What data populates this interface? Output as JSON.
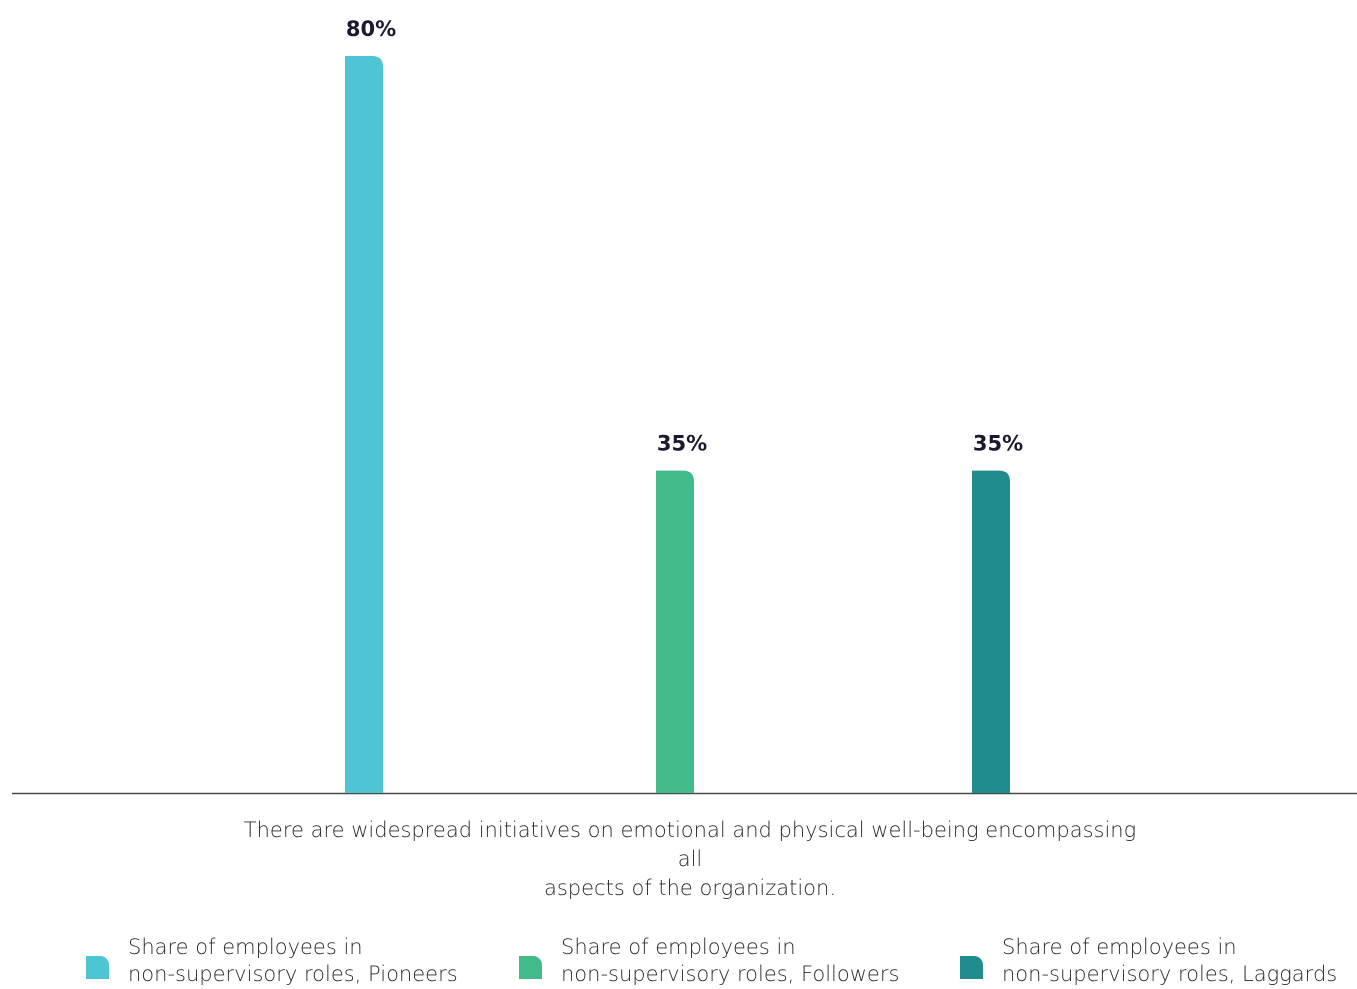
{
  "chart_data": {
    "type": "bar",
    "categories": [
      "There are widespread initiatives on emotional and physical well-being encompassing all aspects of the organization."
    ],
    "category_label_lines": [
      "There are widespread initiatives on emotional and physical well-being encompassing all",
      "aspects of the organization."
    ],
    "series": [
      {
        "name": "Share of employees in non-supervisory roles, Pioneers",
        "legend_lines": [
          "Share of employees in",
          "non-supervisory roles, Pioneers"
        ],
        "values": [
          80
        ],
        "value_label": "80%",
        "color": "#4ec5d3"
      },
      {
        "name": "Share of employees in non-supervisory roles, Followers",
        "legend_lines": [
          "Share of employees in",
          "non-supervisory roles, Followers"
        ],
        "values": [
          35
        ],
        "value_label": "35%",
        "color": "#42bb8b"
      },
      {
        "name": "Share of employees in non-supervisory roles, Laggards",
        "legend_lines": [
          "Share of employees in",
          "non-supervisory roles, Laggards"
        ],
        "values": [
          35
        ],
        "value_label": "35%",
        "color": "#228b8e"
      }
    ],
    "title": "",
    "xlabel": "",
    "ylabel": "",
    "ylim": [
      0,
      80
    ],
    "grid": false,
    "legend_position": "bottom",
    "unit": "%"
  }
}
